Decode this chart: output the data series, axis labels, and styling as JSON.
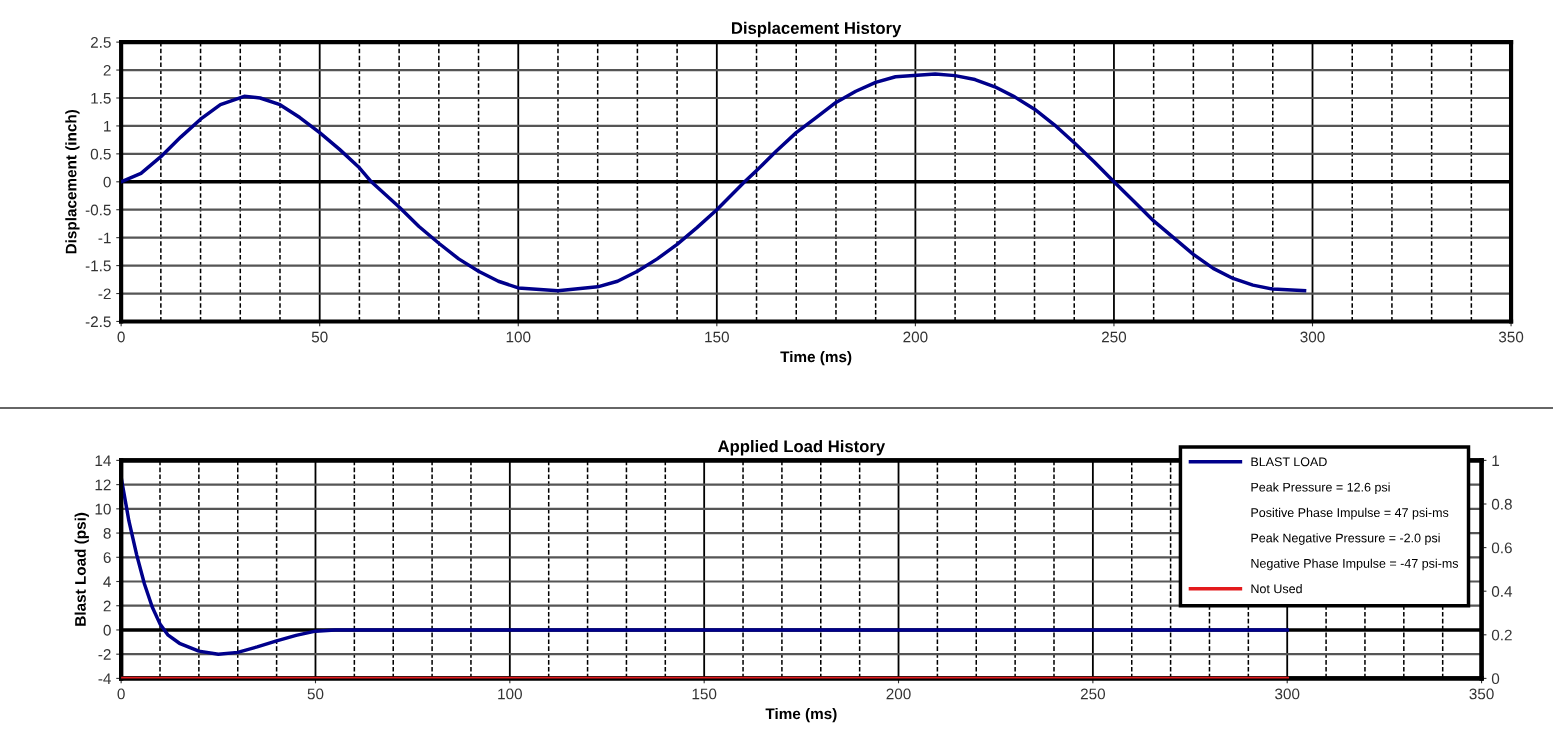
{
  "chart_data": [
    {
      "type": "line",
      "title": "Displacement History",
      "xlabel": "Time (ms)",
      "ylabel": "Displacement (inch)",
      "xlim": [
        0,
        350
      ],
      "xticks": [
        0,
        50,
        100,
        150,
        200,
        250,
        300,
        350
      ],
      "ylim": [
        -2.5,
        2.5
      ],
      "yticks": [
        {
          "value": -2.5,
          "label": "-2.5"
        },
        {
          "value": -2,
          "label": "-2"
        },
        {
          "value": -1.5,
          "label": "-1.5"
        },
        {
          "value": -1,
          "label": "-1"
        },
        {
          "value": -0.5,
          "label": "-0.5"
        },
        0,
        0.5,
        1,
        1.5,
        2,
        2.5
      ],
      "grid": true,
      "legend": false,
      "series": [
        {
          "color": "#00008b",
          "x": [
            0,
            5,
            10,
            15,
            20,
            25,
            31,
            35,
            40,
            45,
            50,
            55,
            60,
            63,
            70,
            75,
            80,
            85,
            90,
            95,
            100,
            110,
            120,
            125,
            130,
            135,
            140,
            145,
            150,
            157,
            160,
            165,
            170,
            175,
            180,
            185,
            190,
            195,
            205,
            210,
            215,
            220,
            225,
            230,
            235,
            240,
            245,
            250,
            255,
            260,
            265,
            270,
            275,
            280,
            285,
            290,
            298
          ],
          "values": [
            0,
            0.15,
            0.45,
            0.8,
            1.12,
            1.38,
            1.53,
            1.5,
            1.38,
            1.15,
            0.88,
            0.58,
            0.25,
            0,
            -0.45,
            -0.8,
            -1.1,
            -1.38,
            -1.6,
            -1.78,
            -1.9,
            -1.95,
            -1.88,
            -1.78,
            -1.6,
            -1.38,
            -1.12,
            -0.82,
            -0.5,
            0,
            0.2,
            0.55,
            0.88,
            1.15,
            1.42,
            1.62,
            1.78,
            1.88,
            1.93,
            1.9,
            1.83,
            1.7,
            1.52,
            1.3,
            1.02,
            0.7,
            0.36,
            0,
            -0.35,
            -0.7,
            -1.0,
            -1.3,
            -1.55,
            -1.73,
            -1.85,
            -1.92,
            -1.95
          ]
        }
      ]
    },
    {
      "type": "line",
      "title": "Applied Load History",
      "xlabel": "Time (ms)",
      "ylabel": "Blast Load (psi)",
      "xlim": [
        0,
        350
      ],
      "xticks": [
        0,
        50,
        100,
        150,
        200,
        250,
        300,
        350
      ],
      "ylim": [
        -4,
        14
      ],
      "yticks": [
        {
          "value": -4,
          "label": "-4"
        },
        {
          "value": -2,
          "label": "-2"
        },
        0,
        2,
        4,
        6,
        8,
        10,
        12,
        14
      ],
      "y2lim": [
        0,
        1
      ],
      "y2ticks": [
        0,
        0.2,
        0.4,
        0.6,
        0.8,
        1
      ],
      "grid": true,
      "legend": "top right",
      "annotations": [
        "Peak Pressure = 12.6 psi",
        "Positive Phase Impulse = 47 psi-ms",
        "Peak Negative Pressure = -2.0 psi",
        "Negative Phase Impulse = -47 psi-ms"
      ],
      "series": [
        {
          "name": "BLAST LOAD",
          "color": "#00008b",
          "x": [
            0,
            2,
            4,
            6,
            8,
            10,
            12,
            15,
            20,
            25,
            30,
            35,
            40,
            45,
            50,
            55,
            300
          ],
          "values": [
            12.6,
            9,
            6.2,
            3.8,
            1.9,
            0.5,
            -0.4,
            -1.1,
            -1.75,
            -2.0,
            -1.85,
            -1.4,
            -0.9,
            -0.45,
            -0.1,
            0,
            0
          ]
        },
        {
          "name": "Not Used",
          "color": "#e31a1c",
          "axis": "y2",
          "x": [
            0,
            300
          ],
          "values": [
            0,
            0
          ]
        }
      ]
    }
  ]
}
